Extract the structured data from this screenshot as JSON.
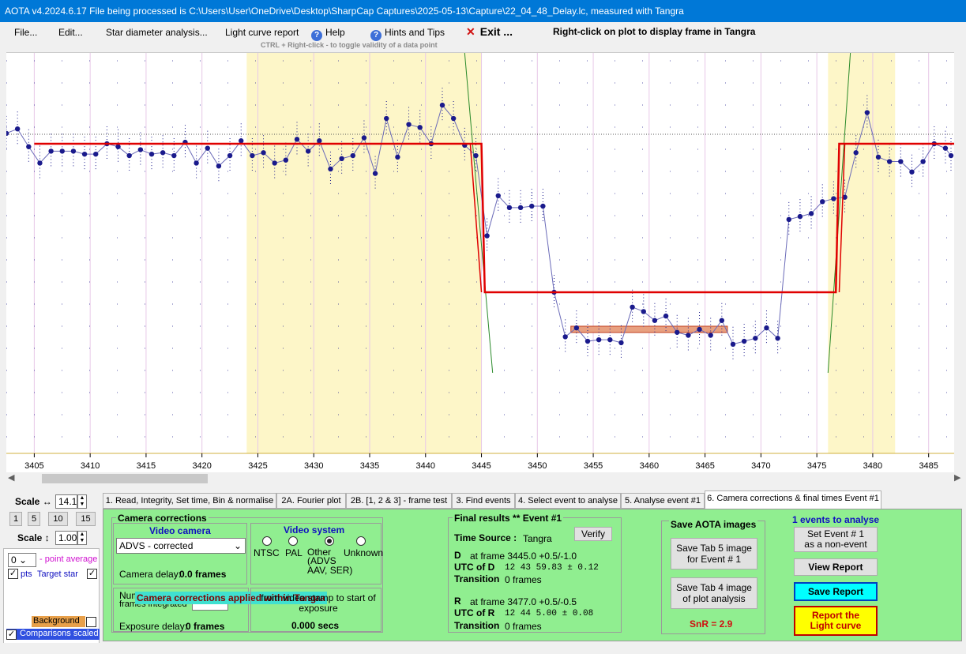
{
  "window": {
    "title": "AOTA v4.2024.6.17    File being processed is C:\\Users\\User\\OneDrive\\Desktop\\SharpCap Captures\\2025-05-13\\Capture\\22_04_48_Delay.lc, measured with Tangra"
  },
  "menu": {
    "file": "File...",
    "edit": "Edit...",
    "star_diameter": "Star diameter analysis...",
    "light_curve_report": "Light curve report",
    "help": "Help",
    "hints": "Hints and Tips",
    "exit": "Exit ...",
    "right_click_hint": "Right-click on plot to display frame in Tangra",
    "ctrl_hint": "CTRL + Right-click  -  to toggle validity of a data point",
    "help_icon": "help-circle-icon",
    "exit_icon": "red-x-icon"
  },
  "plot": {
    "x_ticks": [
      "3405",
      "3410",
      "3415",
      "3420",
      "3425",
      "3430",
      "3435",
      "3440",
      "3445",
      "3450",
      "3455",
      "3460",
      "3465",
      "3470",
      "3475",
      "3480",
      "3485"
    ]
  },
  "chart_data": {
    "type": "scatter",
    "x_range": [
      3402.5,
      3487
    ],
    "highlight_regions": [
      [
        3424,
        3445
      ],
      [
        3476,
        3482
      ]
    ],
    "baseline_level": 1.0,
    "event_level": 0.0,
    "event": {
      "d_frame": 3445.0,
      "r_frame": 3477.0
    },
    "colors": {
      "points": "#1a1a8c",
      "model": "#e00000",
      "highlight": "#fdf6c8",
      "transition": "#2a8a2a",
      "event_band": "#e8a080"
    },
    "points": [
      [
        3402.5,
        1.07
      ],
      [
        3403.5,
        1.1
      ],
      [
        3404.5,
        0.98
      ],
      [
        3405.5,
        0.87
      ],
      [
        3406.5,
        0.95
      ],
      [
        3407.5,
        0.95
      ],
      [
        3408.5,
        0.95
      ],
      [
        3409.5,
        0.93
      ],
      [
        3410.5,
        0.93
      ],
      [
        3411.5,
        1.0
      ],
      [
        3412.5,
        0.98
      ],
      [
        3413.5,
        0.92
      ],
      [
        3414.5,
        0.96
      ],
      [
        3415.5,
        0.93
      ],
      [
        3416.5,
        0.94
      ],
      [
        3417.5,
        0.92
      ],
      [
        3418.5,
        1.01
      ],
      [
        3419.5,
        0.87
      ],
      [
        3420.5,
        0.97
      ],
      [
        3421.5,
        0.85
      ],
      [
        3422.5,
        0.92
      ],
      [
        3423.5,
        1.02
      ],
      [
        3424.5,
        0.92
      ],
      [
        3425.5,
        0.94
      ],
      [
        3426.5,
        0.87
      ],
      [
        3427.5,
        0.89
      ],
      [
        3428.5,
        1.03
      ],
      [
        3429.5,
        0.95
      ],
      [
        3430.5,
        1.02
      ],
      [
        3431.5,
        0.83
      ],
      [
        3432.5,
        0.9
      ],
      [
        3433.5,
        0.92
      ],
      [
        3434.5,
        1.04
      ],
      [
        3435.5,
        0.8
      ],
      [
        3436.5,
        1.17
      ],
      [
        3437.5,
        0.91
      ],
      [
        3438.5,
        1.13
      ],
      [
        3439.5,
        1.11
      ],
      [
        3440.5,
        1.0
      ],
      [
        3441.5,
        1.26
      ],
      [
        3442.5,
        1.17
      ],
      [
        3443.5,
        0.99
      ],
      [
        3444.5,
        0.92
      ],
      [
        3445.5,
        0.38
      ],
      [
        3446.5,
        0.65
      ],
      [
        3447.5,
        0.57
      ],
      [
        3448.5,
        0.57
      ],
      [
        3449.5,
        0.58
      ],
      [
        3450.5,
        0.58
      ],
      [
        3451.5,
        0.0
      ],
      [
        3452.5,
        -0.3
      ],
      [
        3453.5,
        -0.24
      ],
      [
        3454.5,
        -0.33
      ],
      [
        3455.5,
        -0.32
      ],
      [
        3456.5,
        -0.32
      ],
      [
        3457.5,
        -0.34
      ],
      [
        3458.5,
        -0.1
      ],
      [
        3459.5,
        -0.13
      ],
      [
        3460.5,
        -0.19
      ],
      [
        3461.5,
        -0.16
      ],
      [
        3462.5,
        -0.27
      ],
      [
        3463.5,
        -0.29
      ],
      [
        3464.5,
        -0.25
      ],
      [
        3465.5,
        -0.29
      ],
      [
        3466.5,
        -0.19
      ],
      [
        3467.5,
        -0.35
      ],
      [
        3468.5,
        -0.33
      ],
      [
        3469.5,
        -0.31
      ],
      [
        3470.5,
        -0.24
      ],
      [
        3471.5,
        -0.31
      ],
      [
        3472.5,
        0.49
      ],
      [
        3473.5,
        0.51
      ],
      [
        3474.5,
        0.53
      ],
      [
        3475.5,
        0.61
      ],
      [
        3476.5,
        0.63
      ],
      [
        3477.5,
        0.64
      ],
      [
        3478.5,
        0.94
      ],
      [
        3479.5,
        1.21
      ],
      [
        3480.5,
        0.91
      ],
      [
        3481.5,
        0.88
      ],
      [
        3482.5,
        0.88
      ],
      [
        3483.5,
        0.81
      ],
      [
        3484.5,
        0.88
      ],
      [
        3485.5,
        1.0
      ],
      [
        3486.5,
        0.97
      ],
      [
        3487,
        0.92
      ]
    ]
  },
  "left_panel": {
    "scale_h_label": "Scale ↔",
    "scale_h_value": "14.1",
    "scale_buttons": [
      "1",
      "5",
      "10",
      "15"
    ],
    "scale_v_label": "Scale ↕",
    "scale_v_value": "1.00",
    "point_avg_value": "0",
    "point_avg_label": "- point average",
    "pts_label": "pts",
    "target_star_label": "Target star",
    "background_label": "Background",
    "comparisons_label": "Comparisons scaled"
  },
  "tabs": [
    "1.  Read, Integrity, Set time, Bin & normalise",
    "2A. Fourier plot",
    "2B. [1, 2 & 3] - frame test",
    "3. Find events",
    "4. Select event to analyse",
    "5. Analyse event #1",
    "6. Camera corrections & final times Event #1"
  ],
  "camera": {
    "group_title": "Camera corrections",
    "video_camera_title": "Video camera",
    "camera_select_value": "ADVS - corrected",
    "camera_delay_label": "Camera delay:",
    "camera_delay_value": "0.0 frames",
    "video_system_title": "Video system",
    "radio_ntsc": "NTSC",
    "radio_pal": "PAL",
    "radio_other": "Other",
    "radio_other_detail": "(ADVS\nAAV, SER)",
    "radio_unknown": "Unknown",
    "frames_integrated_label_1": "Num",
    "frames_integrated_label_2": "frames integrated",
    "applied_banner": "Camera corrections applied within Tangra",
    "from_video_text": "from video stamp to start of exposure",
    "exposure_delay_label": "Exposure delay:",
    "exposure_delay_value": "0 frames",
    "secs_value": "0.000 secs"
  },
  "final": {
    "title": "Final results  **  Event #1",
    "verify": "Verify",
    "time_source_label": "Time Source :",
    "time_source_value": "Tangra",
    "d_label": "D",
    "d_at_frame": "at frame 3445.0  +0.5/-1.0",
    "utc_d_label": "UTC of D",
    "utc_d_value": "12 43 59.83  ± 0.12",
    "transition_label": "Transition",
    "d_transition_value": "0 frames",
    "r_label": "R",
    "r_at_frame": "at frame 3477.0  +0.5/-0.5",
    "utc_r_label": "UTC of R",
    "utc_r_value": "12 44  5.00  ± 0.08",
    "r_transition_value": "0 frames"
  },
  "save_images": {
    "title": "Save AOTA images",
    "tab5_button": "Save Tab 5 image\nfor Event # 1",
    "tab4_button": "Save Tab 4 image\nof plot analysis",
    "snr": "SnR = 2.9"
  },
  "right_actions": {
    "events_count": "1  events to analyse",
    "non_event_button": "Set Event # 1\nas a non-event",
    "view_report": "View Report",
    "save_report": "Save Report",
    "report_light_curve": "Report the\nLight curve"
  }
}
